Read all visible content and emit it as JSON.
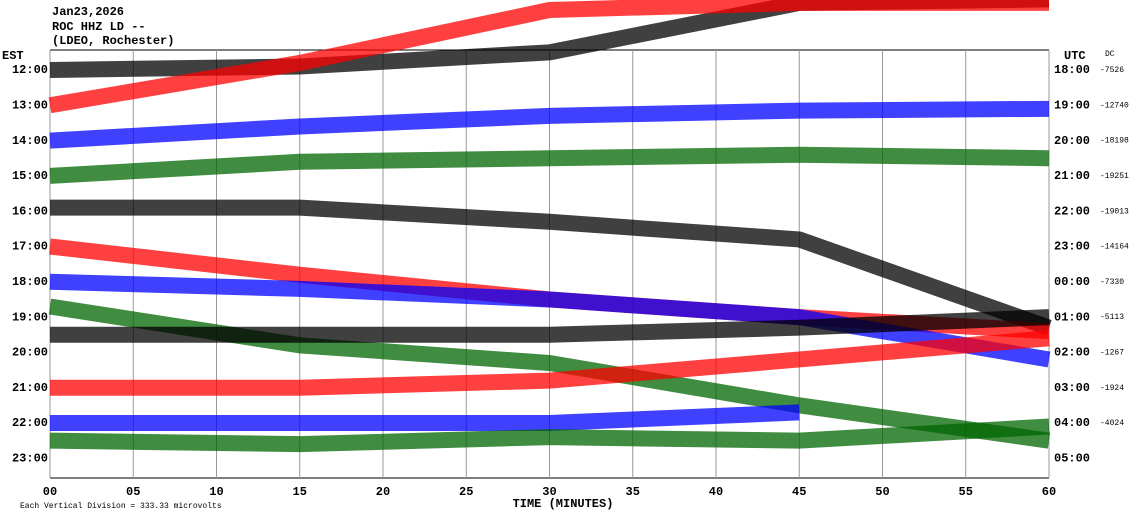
{
  "chart_data": {
    "type": "helicorder",
    "title_lines": [
      "Jan23,2026",
      "ROC HHZ LD --",
      "(LDEO, Rochester)"
    ],
    "left_axis_label": "EST",
    "right_axis_label": "UTC",
    "dc_label": "DC",
    "x_label": "TIME (MINUTES)",
    "footer": "Each Vertical Division =  333.33 microvolts",
    "xlim": [
      0,
      60
    ],
    "xticks": [
      {
        "value": 0,
        "label": "00"
      },
      {
        "value": 5,
        "label": "05"
      },
      10,
      15,
      20,
      25,
      30,
      35,
      40,
      45,
      50,
      55,
      60
    ],
    "grid": true,
    "x": [
      0,
      15,
      30,
      45,
      60
    ],
    "series": [
      {
        "est": "12:00",
        "utc": "18:00",
        "dc": -7526,
        "color": "#000000",
        "values": [
          0,
          0.1,
          0.5,
          1.9,
          2
        ]
      },
      {
        "est": "13:00",
        "utc": "19:00",
        "dc": -12740,
        "color": "#ff0000",
        "values": [
          0,
          1.2,
          2.7,
          2.9,
          2.9
        ]
      },
      {
        "est": "14:00",
        "utc": "20:00",
        "dc": -18198,
        "color": "#0000ff",
        "values": [
          0,
          0.4,
          0.7,
          0.85,
          0.9
        ]
      },
      {
        "est": "15:00",
        "utc": "21:00",
        "dc": -19251,
        "color": "#006600",
        "values": [
          0,
          0.4,
          0.5,
          0.6,
          0.5
        ]
      },
      {
        "est": "16:00",
        "utc": "22:00",
        "dc": -19013,
        "color": "#000000",
        "values": [
          0.1,
          0.1,
          -0.3,
          -0.8,
          -3.3
        ]
      },
      {
        "est": "17:00",
        "utc": "23:00",
        "dc": -14164,
        "color": "#ff0000",
        "values": [
          0,
          -0.8,
          -1.5,
          -2,
          -2.4
        ]
      },
      {
        "est": "18:00",
        "utc": "00:00",
        "dc": -7330,
        "color": "#0000ff",
        "values": [
          0,
          -0.2,
          -0.5,
          -1,
          -2.2
        ]
      },
      {
        "est": "19:00",
        "utc": "01:00",
        "dc": -5113,
        "color": "#006600",
        "values": [
          0.3,
          -0.8,
          -1.3,
          -2.5,
          -3.5
        ]
      },
      {
        "est": "20:00",
        "utc": "02:00",
        "dc": -1267,
        "color": "#000000",
        "values": [
          0.5,
          0.5,
          0.5,
          0.7,
          1
        ]
      },
      {
        "est": "21:00",
        "utc": "03:00",
        "dc": -1924,
        "color": "#ff0000",
        "values": [
          0,
          0,
          0.2,
          0.8,
          1.4
        ]
      },
      {
        "est": "22:00",
        "utc": "04:00",
        "dc": -4024,
        "color": "#0000ff",
        "values": [
          0,
          0,
          0,
          0.3,
          null
        ]
      },
      {
        "est": "23:00",
        "utc": "05:00",
        "dc": null,
        "color": "#006600",
        "values": [
          0.5,
          0.4,
          0.6,
          0.5,
          0.9
        ]
      }
    ]
  }
}
